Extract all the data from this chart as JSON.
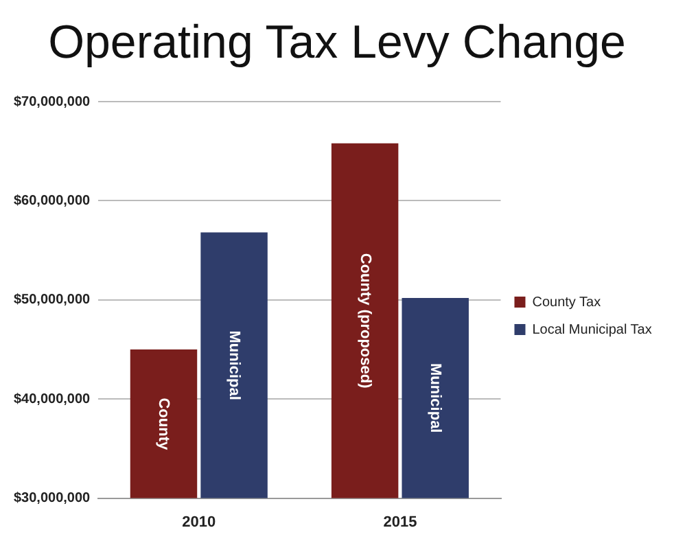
{
  "chart_data": {
    "type": "bar",
    "title": "Operating Tax Levy Change",
    "categories": [
      "2010",
      "2015"
    ],
    "series": [
      {
        "name": "County Tax",
        "color": "#7a1e1c",
        "values": [
          45000000,
          65800000
        ]
      },
      {
        "name": "Local Municipal Tax",
        "color": "#2f3d6b",
        "values": [
          56800000,
          50200000
        ]
      }
    ],
    "ylim": [
      30000000,
      70000000
    ],
    "yticks": [
      {
        "value": 30000000,
        "label": "$30,000,000"
      },
      {
        "value": 40000000,
        "label": "$40,000,000"
      },
      {
        "value": 50000000,
        "label": "$50,000,000"
      },
      {
        "value": 60000000,
        "label": "$60,000,000"
      },
      {
        "value": 70000000,
        "label": "$70,000,000"
      }
    ],
    "annotations": [
      "County",
      "Municipal",
      "County (proposed)",
      "Municipal"
    ],
    "grid": "y",
    "legend": "right"
  }
}
